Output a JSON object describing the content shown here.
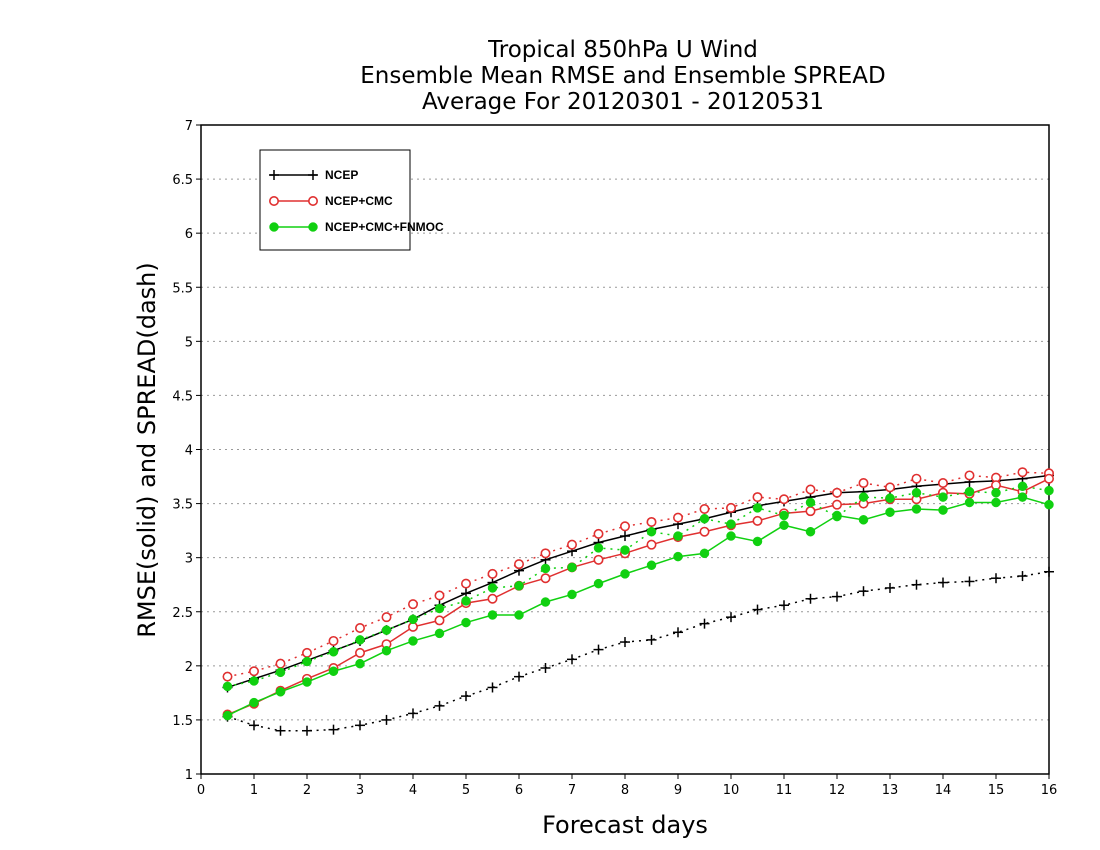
{
  "chart_data": {
    "type": "line",
    "title_lines": [
      "Tropical 850hPa U Wind",
      "Ensemble Mean RMSE and Ensemble SPREAD",
      "Average For 20120301 - 20120531"
    ],
    "xlabel": "Forecast days",
    "ylabel": "RMSE(solid) and SPREAD(dash)",
    "xlim": [
      0,
      16
    ],
    "ylim": [
      1,
      7
    ],
    "xticks": [
      0,
      1,
      2,
      3,
      4,
      5,
      6,
      7,
      8,
      9,
      10,
      11,
      12,
      13,
      14,
      15,
      16
    ],
    "yticks": [
      1,
      1.5,
      2,
      2.5,
      3,
      3.5,
      4,
      4.5,
      5,
      5.5,
      6,
      6.5,
      7
    ],
    "grid": true,
    "legend_position": "top-left",
    "x": [
      0.5,
      1,
      1.5,
      2,
      2.5,
      3,
      3.5,
      4,
      4.5,
      5,
      5.5,
      6,
      6.5,
      7,
      7.5,
      8,
      8.5,
      9,
      9.5,
      10,
      10.5,
      11,
      11.5,
      12,
      12.5,
      13,
      13.5,
      14,
      14.5,
      15,
      15.5,
      16
    ],
    "series": [
      {
        "name": "NCEP",
        "color": "#000000",
        "marker": "plus",
        "rmse": [
          1.8,
          1.88,
          1.96,
          2.05,
          2.14,
          2.23,
          2.33,
          2.43,
          2.56,
          2.67,
          2.77,
          2.88,
          2.98,
          3.06,
          3.14,
          3.2,
          3.26,
          3.31,
          3.36,
          3.42,
          3.48,
          3.52,
          3.56,
          3.6,
          3.61,
          3.63,
          3.66,
          3.68,
          3.7,
          3.71,
          3.73,
          3.76
        ],
        "spread": [
          1.53,
          1.45,
          1.4,
          1.4,
          1.41,
          1.45,
          1.5,
          1.56,
          1.63,
          1.72,
          1.8,
          1.9,
          1.98,
          2.06,
          2.15,
          2.22,
          2.24,
          2.31,
          2.39,
          2.45,
          2.52,
          2.56,
          2.62,
          2.64,
          2.69,
          2.72,
          2.75,
          2.77,
          2.78,
          2.81,
          2.83,
          2.87
        ]
      },
      {
        "name": "NCEP+CMC",
        "color": "#e03030",
        "marker": "open-circle",
        "rmse": [
          1.55,
          1.65,
          1.77,
          1.88,
          1.98,
          2.12,
          2.2,
          2.36,
          2.42,
          2.58,
          2.62,
          2.74,
          2.81,
          2.91,
          2.98,
          3.04,
          3.12,
          3.19,
          3.24,
          3.3,
          3.34,
          3.41,
          3.43,
          3.49,
          3.5,
          3.54,
          3.54,
          3.6,
          3.59,
          3.67,
          3.61,
          3.73
        ],
        "spread": [
          1.9,
          1.95,
          2.02,
          2.12,
          2.23,
          2.35,
          2.45,
          2.57,
          2.65,
          2.76,
          2.85,
          2.94,
          3.04,
          3.12,
          3.22,
          3.29,
          3.33,
          3.37,
          3.45,
          3.46,
          3.56,
          3.54,
          3.63,
          3.6,
          3.69,
          3.65,
          3.73,
          3.69,
          3.76,
          3.74,
          3.79,
          3.78
        ]
      },
      {
        "name": "NCEP+CMC+FNMOC",
        "color": "#10d010",
        "marker": "filled-circle",
        "rmse": [
          1.54,
          1.66,
          1.76,
          1.85,
          1.95,
          2.02,
          2.14,
          2.23,
          2.3,
          2.4,
          2.47,
          2.47,
          2.59,
          2.66,
          2.76,
          2.85,
          2.93,
          3.01,
          3.04,
          3.2,
          3.15,
          3.3,
          3.24,
          3.39,
          3.35,
          3.42,
          3.45,
          3.44,
          3.51,
          3.51,
          3.56,
          3.49
        ]
      },
      {
        "name": "NCEP+CMC+FNMOC (spread)",
        "color": "#10d010",
        "marker": "filled-circle",
        "spread": [
          1.81,
          1.86,
          1.94,
          2.04,
          2.13,
          2.24,
          2.33,
          2.43,
          2.53,
          2.6,
          2.72,
          2.74,
          2.9,
          2.91,
          3.09,
          3.07,
          3.24,
          3.2,
          3.36,
          3.31,
          3.46,
          3.39,
          3.51,
          3.38,
          3.56,
          3.55,
          3.6,
          3.56,
          3.61,
          3.6,
          3.66,
          3.62
        ]
      }
    ]
  }
}
